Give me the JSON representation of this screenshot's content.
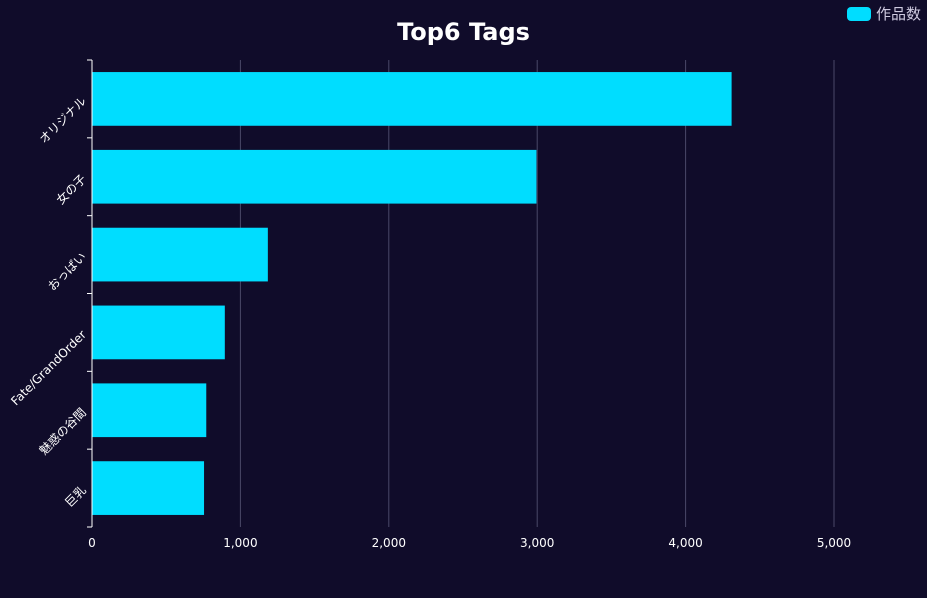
{
  "chart_data": {
    "type": "bar",
    "orientation": "horizontal",
    "title": "Top6 Tags",
    "categories": [
      "オリジナル",
      "女の子",
      "おっぱい",
      "Fate/GrandOrder",
      "魅惑の谷間",
      "巨乳"
    ],
    "series": [
      {
        "name": "作品数",
        "values": [
          4310,
          2995,
          1185,
          895,
          770,
          755
        ]
      }
    ],
    "xlim": [
      0,
      5000
    ],
    "xticks": [
      0,
      1000,
      2000,
      3000,
      4000,
      5000
    ],
    "xtick_labels": [
      "0",
      "1,000",
      "2,000",
      "3,000",
      "4,000",
      "5,000"
    ],
    "grid": "vertical",
    "legend_position": "top-right",
    "colors": {
      "bar": "#00ddff",
      "background": "#100c2a",
      "grid": "#4a4868",
      "axis": "#ffffff"
    }
  }
}
